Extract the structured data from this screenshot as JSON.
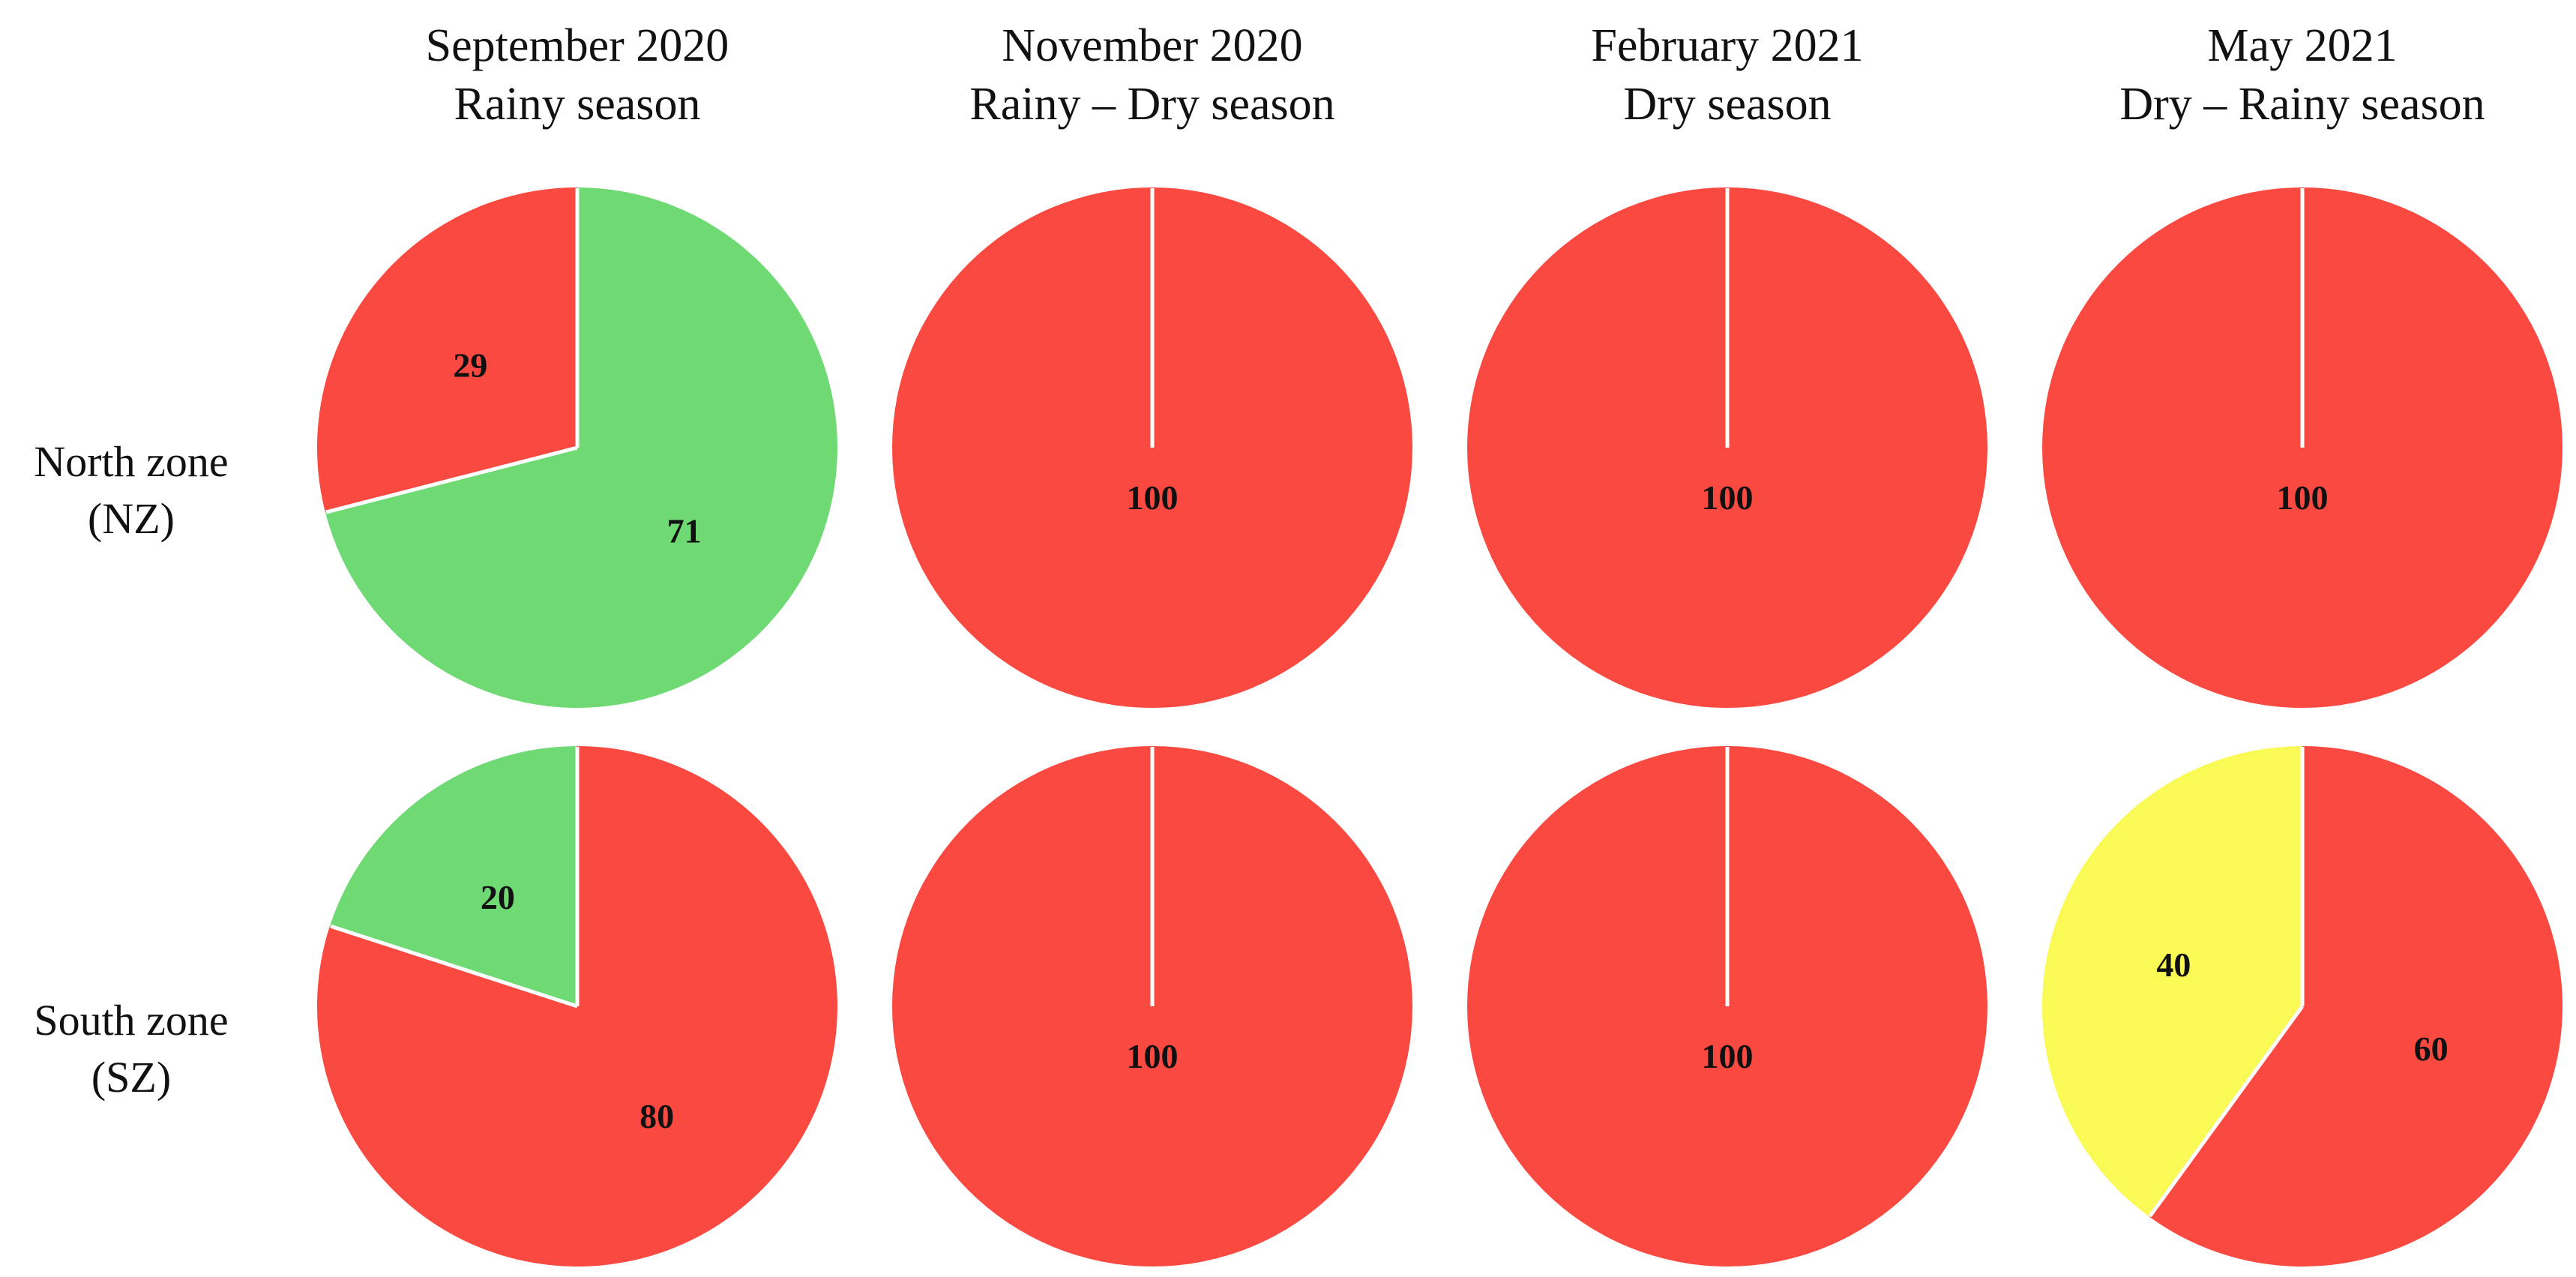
{
  "figure": {
    "column_headers": [
      {
        "line1": "September 2020",
        "line2": "Rainy season"
      },
      {
        "line1": "November 2020",
        "line2": "Rainy – Dry season"
      },
      {
        "line1": "February 2021",
        "line2": "Dry season"
      },
      {
        "line1": "May 2021",
        "line2": "Dry – Rainy season"
      }
    ],
    "row_headers": [
      {
        "line1": "North zone",
        "line2": "(NZ)"
      },
      {
        "line1": "South zone",
        "line2": "(SZ)"
      }
    ]
  },
  "colors": {
    "red": "#FA4940",
    "green": "#6FD973",
    "yellow": "#FAFA57",
    "divider": "#FFFFFF",
    "slice_label": "#111111",
    "text": "#111111",
    "background": "#FFFFFF"
  },
  "chart_data": {
    "type": "pie",
    "layout": "grid of 8 pies (2 rows x 4 columns), values in percent, slices start at 12 o'clock and run clockwise, white divider lines between slices",
    "unit": "percent",
    "row_labels": [
      "North zone (NZ)",
      "South zone (SZ)"
    ],
    "column_labels": [
      "September 2020 / Rainy season",
      "November 2020 / Rainy – Dry season",
      "February 2021 / Dry season",
      "May 2021 / Dry – Rainy season"
    ],
    "pies": [
      {
        "id": "nz-september-2020",
        "row": "North zone (NZ)",
        "row_index": 0,
        "column": "September 2020 / Rainy season",
        "col_index": 0,
        "slices": [
          {
            "value": 71,
            "label": "71",
            "color": "green"
          },
          {
            "value": 29,
            "label": "29",
            "color": "red"
          }
        ]
      },
      {
        "id": "nz-november-2020",
        "row": "North zone (NZ)",
        "row_index": 0,
        "column": "November 2020 / Rainy – Dry season",
        "col_index": 1,
        "slices": [
          {
            "value": 100,
            "label": "100",
            "color": "red"
          }
        ]
      },
      {
        "id": "nz-february-2021",
        "row": "North zone (NZ)",
        "row_index": 0,
        "column": "February 2021 / Dry season",
        "col_index": 2,
        "slices": [
          {
            "value": 100,
            "label": "100",
            "color": "red"
          }
        ]
      },
      {
        "id": "nz-may-2021",
        "row": "North zone (NZ)",
        "row_index": 0,
        "column": "May 2021 / Dry – Rainy season",
        "col_index": 3,
        "slices": [
          {
            "value": 100,
            "label": "100",
            "color": "red"
          }
        ]
      },
      {
        "id": "sz-september-2020",
        "row": "South zone (SZ)",
        "row_index": 1,
        "column": "September 2020 / Rainy season",
        "col_index": 0,
        "slices": [
          {
            "value": 80,
            "label": "80",
            "color": "red"
          },
          {
            "value": 20,
            "label": "20",
            "color": "green"
          }
        ]
      },
      {
        "id": "sz-november-2020",
        "row": "South zone (SZ)",
        "row_index": 1,
        "column": "November 2020 / Rainy – Dry season",
        "col_index": 1,
        "slices": [
          {
            "value": 100,
            "label": "100",
            "color": "red"
          }
        ]
      },
      {
        "id": "sz-february-2021",
        "row": "South zone (SZ)",
        "row_index": 1,
        "column": "February 2021 / Dry season",
        "col_index": 2,
        "slices": [
          {
            "value": 100,
            "label": "100",
            "color": "red"
          }
        ]
      },
      {
        "id": "sz-may-2021",
        "row": "South zone (SZ)",
        "row_index": 1,
        "column": "May 2021 / Dry – Rainy season",
        "col_index": 3,
        "slices": [
          {
            "value": 60,
            "label": "60",
            "color": "red"
          },
          {
            "value": 40,
            "label": "40",
            "color": "yellow"
          }
        ]
      }
    ]
  }
}
